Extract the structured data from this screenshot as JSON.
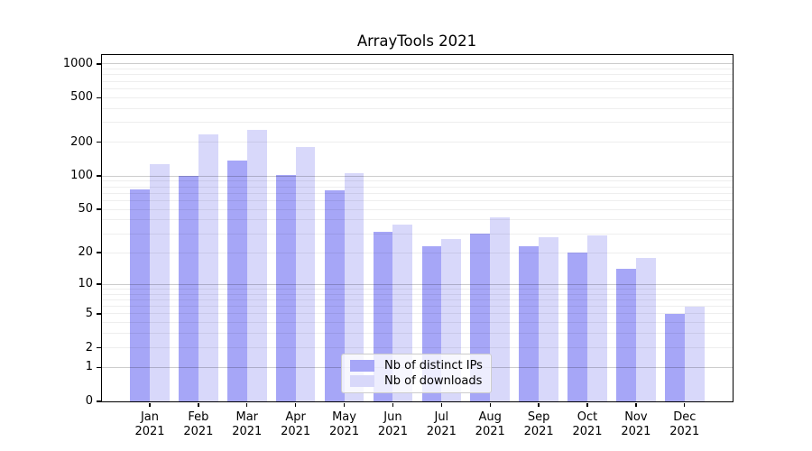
{
  "title": "ArrayTools 2021",
  "chart_data": {
    "type": "bar",
    "title": "ArrayTools 2021",
    "categories": [
      "Jan 2021",
      "Feb 2021",
      "Mar 2021",
      "Apr 2021",
      "May 2021",
      "Jun 2021",
      "Jul 2021",
      "Aug 2021",
      "Sep 2021",
      "Oct 2021",
      "Nov 2021",
      "Dec 2021"
    ],
    "series": [
      {
        "name": "Nb of distinct IPs",
        "color": "#a6a6f7",
        "values": [
          75,
          101,
          137,
          102,
          74,
          31,
          23,
          30,
          23,
          20,
          14,
          5
        ]
      },
      {
        "name": "Nb of downloads",
        "color": "#d8d8fa",
        "values": [
          128,
          237,
          257,
          182,
          106,
          36,
          27,
          42,
          28,
          29,
          18,
          6
        ]
      }
    ],
    "yscale": "log1p",
    "ylim": [
      0,
      1200
    ],
    "yticks": [
      0,
      1,
      2,
      5,
      10,
      20,
      50,
      100,
      200,
      500,
      1000
    ],
    "grid": "horizontal major at 1,10,100,1000 plus log minors",
    "legend_position": "inside lower-center",
    "xlabel": "",
    "ylabel": ""
  }
}
